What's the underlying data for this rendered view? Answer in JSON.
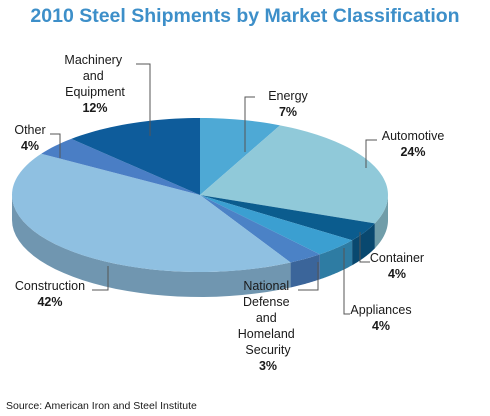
{
  "chart_data": {
    "type": "pie3d",
    "title": "2010 Steel Shipments by Market Classification",
    "source": "Source: American Iron and Steel Institute",
    "categories": [
      "Energy",
      "Automotive",
      "Container",
      "Appliances",
      "National Defense and Homeland Security",
      "Construction",
      "Other",
      "Machinery and Equipment"
    ],
    "values": [
      7,
      24,
      4,
      4,
      3,
      42,
      4,
      12
    ],
    "value_labels": [
      "7%",
      "24%",
      "4%",
      "4%",
      "3%",
      "42%",
      "4%",
      "12%"
    ],
    "colors": [
      "#4ea9d5",
      "#90c9d9",
      "#0b5c8e",
      "#3b9fd1",
      "#4b82c6",
      "#8fc0e1",
      "#4a7ec5",
      "#0e5c9b"
    ]
  }
}
